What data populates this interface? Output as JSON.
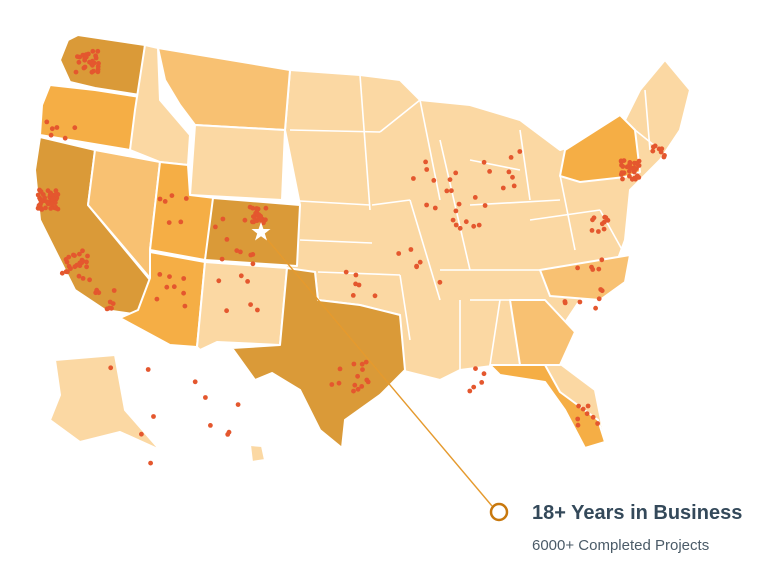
{
  "stats": {
    "headline": "18+ Years in Business",
    "subline": "6000+ Completed Projects"
  },
  "colors": {
    "tier1": "#fbd8a3",
    "tier2": "#f8c172",
    "tier3": "#f5ae45",
    "tier4": "#da9a38",
    "dot": "#e4572e",
    "connector": "#e59a2e",
    "marker_ring": "#c8780d",
    "text": "#34495a"
  },
  "states": {
    "WA": "tier4",
    "OR": "tier3",
    "CA": "tier4",
    "NV": "tier2",
    "ID": "tier1",
    "MT": "tier2",
    "WY": "tier1",
    "UT": "tier3",
    "AZ": "tier3",
    "CO": "tier4",
    "NM": "tier1",
    "TX": "tier4",
    "NY": "tier3",
    "NC": "tier2",
    "GA": "tier2",
    "FL": "tier3",
    "AK": "tier1",
    "HI": "tier1",
    "other": "tier1"
  },
  "headquarters_icon": "star-icon",
  "marker_icon": "circle-marker-icon"
}
